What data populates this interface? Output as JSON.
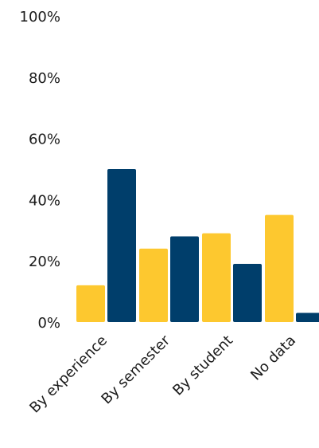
{
  "chart_data": {
    "type": "bar",
    "categories": [
      "By experience",
      "By semester",
      "By student",
      "No data"
    ],
    "series": [
      {
        "values": [
          12,
          24,
          29,
          35
        ],
        "color": "#FDC82F"
      },
      {
        "values": [
          50,
          28,
          19,
          3
        ],
        "color": "#003E6B"
      }
    ],
    "y_ticks": [
      "0%",
      "20%",
      "40%",
      "60%",
      "80%",
      "100%"
    ],
    "ylim": [
      0,
      100
    ],
    "grid": false,
    "legend": "none"
  }
}
